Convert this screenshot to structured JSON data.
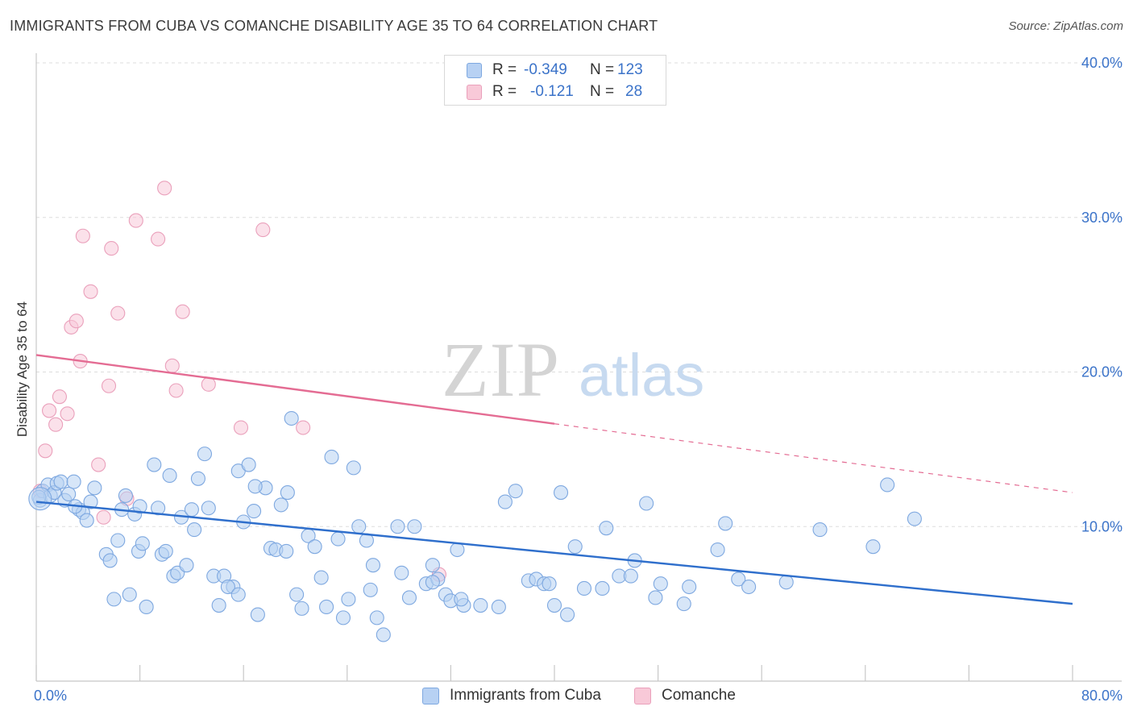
{
  "header": {
    "title": "IMMIGRANTS FROM CUBA VS COMANCHE DISABILITY AGE 35 TO 64 CORRELATION CHART",
    "source": "Source: ZipAtlas.com"
  },
  "watermark": {
    "zip": "ZIP",
    "atlas": "atlas"
  },
  "legend": {
    "rows": [
      {
        "r_label": "R =",
        "r_value": "-0.349",
        "n_label": "N =",
        "n_value": "123",
        "color": "#b7d1f3"
      },
      {
        "r_label": "R =",
        "r_value": "-0.121",
        "n_label": "N =",
        "n_value": "28",
        "color": "#f8c9d8"
      }
    ]
  },
  "bottom_legend": [
    {
      "label": "Immigrants from Cuba",
      "color": "#b7d1f3"
    },
    {
      "label": "Comanche",
      "color": "#f8c9d8"
    }
  ],
  "colors": {
    "blue_fill": "#b7d1f3",
    "blue_stroke": "#7ea8e0",
    "blue_line": "#2f6fcc",
    "pink_fill": "#f8c9d8",
    "pink_stroke": "#eaa0bb",
    "pink_line": "#e46c93",
    "axis_text": "#3b73c9",
    "grid": "#dddddd"
  },
  "chart_data": {
    "type": "scatter",
    "title": "IMMIGRANTS FROM CUBA VS COMANCHE DISABILITY AGE 35 TO 64 CORRELATION CHART",
    "xlabel": "",
    "ylabel": "Disability Age 35 to 64",
    "xlim": [
      0,
      80
    ],
    "ylim": [
      0,
      40
    ],
    "x_tick_labels": [
      "0.0%",
      "80.0%"
    ],
    "y_tick_labels": [
      "10.0%",
      "20.0%",
      "30.0%",
      "40.0%"
    ],
    "y_ticks": [
      10,
      20,
      30,
      40
    ],
    "grid": "horizontal dashed",
    "legend_position": "top-center",
    "series": [
      {
        "name": "Immigrants from Cuba",
        "R": -0.349,
        "N": 123,
        "trend": {
          "x": [
            0,
            80
          ],
          "y": [
            11.6,
            5.0
          ],
          "dashed_from": null
        },
        "points": [
          [
            0.3,
            11.7
          ],
          [
            0.5,
            12.3
          ],
          [
            0.9,
            12.7
          ],
          [
            1.1,
            12.0
          ],
          [
            1.4,
            12.2
          ],
          [
            1.6,
            12.8
          ],
          [
            1.9,
            12.9
          ],
          [
            2.2,
            11.7
          ],
          [
            2.5,
            12.1
          ],
          [
            2.9,
            12.9
          ],
          [
            3.3,
            11.1
          ],
          [
            3.6,
            10.9
          ],
          [
            3.9,
            10.4
          ],
          [
            4.2,
            11.6
          ],
          [
            4.5,
            12.5
          ],
          [
            5.4,
            8.2
          ],
          [
            5.7,
            7.8
          ],
          [
            6.0,
            5.3
          ],
          [
            6.3,
            9.1
          ],
          [
            6.6,
            11.1
          ],
          [
            6.9,
            12.0
          ],
          [
            7.2,
            5.6
          ],
          [
            7.6,
            10.8
          ],
          [
            7.9,
            8.4
          ],
          [
            8.2,
            8.9
          ],
          [
            8.5,
            4.8
          ],
          [
            9.1,
            14.0
          ],
          [
            9.4,
            11.2
          ],
          [
            9.7,
            8.2
          ],
          [
            10.0,
            8.4
          ],
          [
            10.3,
            13.3
          ],
          [
            10.6,
            6.8
          ],
          [
            10.9,
            7.0
          ],
          [
            11.2,
            10.6
          ],
          [
            11.6,
            7.5
          ],
          [
            12.0,
            11.1
          ],
          [
            12.5,
            13.1
          ],
          [
            13.0,
            14.7
          ],
          [
            13.3,
            11.2
          ],
          [
            13.7,
            6.8
          ],
          [
            14.1,
            4.9
          ],
          [
            14.5,
            6.8
          ],
          [
            15.2,
            6.1
          ],
          [
            15.6,
            13.6
          ],
          [
            16.0,
            10.3
          ],
          [
            16.4,
            14.0
          ],
          [
            16.8,
            11.0
          ],
          [
            17.1,
            4.3
          ],
          [
            17.7,
            12.5
          ],
          [
            18.1,
            8.6
          ],
          [
            18.5,
            8.5
          ],
          [
            18.9,
            11.4
          ],
          [
            19.3,
            8.4
          ],
          [
            19.7,
            17.0
          ],
          [
            20.1,
            5.6
          ],
          [
            20.5,
            4.7
          ],
          [
            21.0,
            9.4
          ],
          [
            21.5,
            8.7
          ],
          [
            22.0,
            6.7
          ],
          [
            22.4,
            4.8
          ],
          [
            22.8,
            14.5
          ],
          [
            23.3,
            9.2
          ],
          [
            23.7,
            4.1
          ],
          [
            24.1,
            5.3
          ],
          [
            24.5,
            13.8
          ],
          [
            24.9,
            10.0
          ],
          [
            25.5,
            9.1
          ],
          [
            26.3,
            4.1
          ],
          [
            26.8,
            3.0
          ],
          [
            27.9,
            10.0
          ],
          [
            28.2,
            7.0
          ],
          [
            28.8,
            5.4
          ],
          [
            29.2,
            10.0
          ],
          [
            30.1,
            6.3
          ],
          [
            30.6,
            7.5
          ],
          [
            31.0,
            6.6
          ],
          [
            31.6,
            5.6
          ],
          [
            32.0,
            5.2
          ],
          [
            32.5,
            8.5
          ],
          [
            33.0,
            4.9
          ],
          [
            34.3,
            4.9
          ],
          [
            35.7,
            4.8
          ],
          [
            36.2,
            11.6
          ],
          [
            37.0,
            12.3
          ],
          [
            38.0,
            6.5
          ],
          [
            38.6,
            6.6
          ],
          [
            39.2,
            6.3
          ],
          [
            40.0,
            4.9
          ],
          [
            40.5,
            12.2
          ],
          [
            41.0,
            4.3
          ],
          [
            41.6,
            8.7
          ],
          [
            42.3,
            6.0
          ],
          [
            43.7,
            6.0
          ],
          [
            44.0,
            9.9
          ],
          [
            45.0,
            6.8
          ],
          [
            46.2,
            7.8
          ],
          [
            47.1,
            11.5
          ],
          [
            47.8,
            5.4
          ],
          [
            48.2,
            6.3
          ],
          [
            50.0,
            5.0
          ],
          [
            50.4,
            6.1
          ],
          [
            52.6,
            8.5
          ],
          [
            53.2,
            10.2
          ],
          [
            54.2,
            6.6
          ],
          [
            55.0,
            6.1
          ],
          [
            57.9,
            6.4
          ],
          [
            60.5,
            9.8
          ],
          [
            64.6,
            8.7
          ],
          [
            65.7,
            12.7
          ],
          [
            67.8,
            10.5
          ],
          [
            0.2,
            11.9
          ],
          [
            3.0,
            11.3
          ],
          [
            8.0,
            11.3
          ],
          [
            12.2,
            9.8
          ],
          [
            14.8,
            6.1
          ],
          [
            15.6,
            5.6
          ],
          [
            16.9,
            12.6
          ],
          [
            19.4,
            12.2
          ],
          [
            25.8,
            5.9
          ],
          [
            26.0,
            7.5
          ],
          [
            30.6,
            6.4
          ],
          [
            32.8,
            5.3
          ],
          [
            39.6,
            6.3
          ],
          [
            45.9,
            6.8
          ]
        ]
      },
      {
        "name": "Comanche",
        "R": -0.121,
        "N": 28,
        "trend": {
          "x": [
            0,
            80
          ],
          "y": [
            21.1,
            12.2
          ],
          "dashed_from": 40
        },
        "points": [
          [
            0.3,
            12.3
          ],
          [
            0.7,
            14.9
          ],
          [
            1.0,
            17.5
          ],
          [
            1.5,
            16.6
          ],
          [
            1.8,
            18.4
          ],
          [
            2.4,
            17.3
          ],
          [
            2.7,
            22.9
          ],
          [
            3.1,
            23.3
          ],
          [
            3.4,
            20.7
          ],
          [
            3.6,
            28.8
          ],
          [
            4.2,
            25.2
          ],
          [
            4.8,
            14.0
          ],
          [
            5.2,
            10.6
          ],
          [
            5.6,
            19.1
          ],
          [
            5.8,
            28.0
          ],
          [
            6.3,
            23.8
          ],
          [
            7.0,
            11.8
          ],
          [
            7.7,
            29.8
          ],
          [
            9.4,
            28.6
          ],
          [
            9.9,
            31.9
          ],
          [
            10.5,
            20.4
          ],
          [
            10.8,
            18.8
          ],
          [
            11.3,
            23.9
          ],
          [
            13.3,
            19.2
          ],
          [
            15.8,
            16.4
          ],
          [
            17.5,
            29.2
          ],
          [
            20.6,
            16.4
          ],
          [
            31.1,
            6.9
          ]
        ]
      }
    ]
  }
}
